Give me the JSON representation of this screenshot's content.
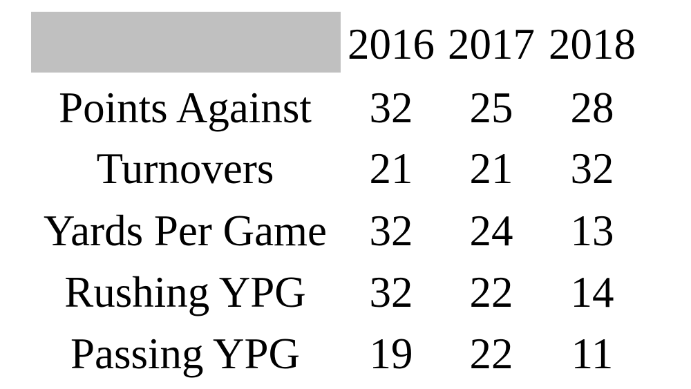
{
  "table": {
    "header": [
      "2016",
      "2017",
      "2018"
    ],
    "rows": [
      [
        "Points Against",
        32,
        25,
        28
      ],
      [
        "Turnovers",
        21,
        21,
        32
      ],
      [
        "Yards Per Game",
        32,
        24,
        13
      ],
      [
        "Rushing YPG",
        32,
        22,
        14
      ],
      [
        "Passing YPG",
        19,
        22,
        11
      ]
    ]
  }
}
